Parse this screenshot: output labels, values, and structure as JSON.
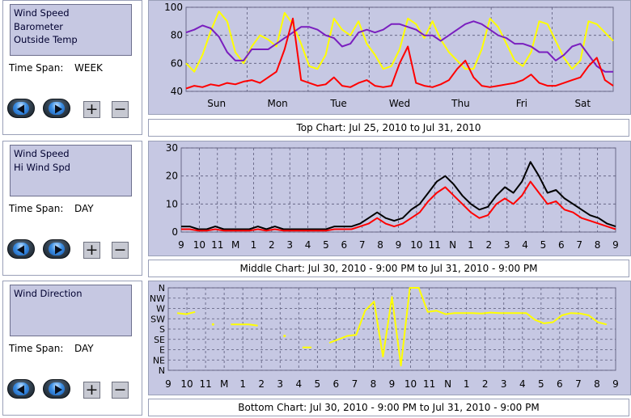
{
  "panels": [
    {
      "series": [
        "Wind Speed",
        "Barometer",
        "Outside Temp"
      ],
      "time_span_label": "Time Span:",
      "time_span_value": "WEEK",
      "buttons": {
        "prev": "previous",
        "next": "next",
        "plus": "+",
        "minus": "−"
      }
    },
    {
      "series": [
        "Wind Speed",
        "Hi Wind Spd"
      ],
      "time_span_label": "Time Span:",
      "time_span_value": "DAY",
      "buttons": {
        "prev": "previous",
        "next": "next",
        "plus": "+",
        "minus": "−"
      }
    },
    {
      "series": [
        "Wind Direction"
      ],
      "time_span_label": "Time Span:",
      "time_span_value": "DAY",
      "buttons": {
        "prev": "previous",
        "next": "next",
        "plus": "+",
        "minus": "−"
      }
    }
  ],
  "captions": {
    "top": "Top Chart:  Jul 25, 2010  to  Jul 31, 2010",
    "middle": "Middle Chart:  Jul 30, 2010 - 9:00 PM  to  Jul 31, 2010 - 9:00 PM",
    "bottom": "Bottom Chart:  Jul 30, 2010 - 9:00 PM  to  Jul 31, 2010 - 9:00 PM"
  },
  "colors": {
    "plot_bg": "#c6c8e3",
    "grid": "#5a5a7a",
    "wind_speed": "#ff0000",
    "barometer": "#7a1fbf",
    "outside_temp": "#ffff00",
    "hi_wind": "#000000",
    "wind_direction": "#ffff00"
  },
  "chart_data": [
    {
      "type": "line",
      "name": "top",
      "x_labels": [
        "Sun",
        "Mon",
        "Tue",
        "Wed",
        "Thu",
        "Fri",
        "Sat"
      ],
      "y_ticks": [
        "40",
        "60",
        "80",
        "100"
      ],
      "ylim": [
        40,
        100
      ],
      "grid": true,
      "series": [
        {
          "name": "Outside Temp",
          "color": "#ffff00",
          "values": [
            60,
            54,
            66,
            83,
            97,
            90,
            68,
            60,
            72,
            80,
            77,
            72,
            96,
            88,
            74,
            58,
            56,
            66,
            92,
            84,
            80,
            90,
            74,
            66,
            56,
            58,
            70,
            92,
            88,
            78,
            90,
            77,
            68,
            62,
            56,
            56,
            70,
            92,
            86,
            74,
            62,
            58,
            68,
            90,
            88,
            76,
            64,
            56,
            62,
            90,
            88,
            82,
            76
          ]
        },
        {
          "name": "Barometer",
          "color": "#7a1fbf",
          "values": [
            82,
            84,
            87,
            85,
            79,
            68,
            62,
            62,
            70,
            70,
            70,
            74,
            78,
            82,
            86,
            86,
            84,
            80,
            78,
            72,
            74,
            82,
            84,
            82,
            84,
            88,
            88,
            86,
            84,
            80,
            80,
            76,
            80,
            84,
            88,
            90,
            88,
            84,
            80,
            78,
            74,
            74,
            72,
            68,
            68,
            62,
            66,
            72,
            74,
            66,
            58,
            54,
            54
          ]
        },
        {
          "name": "Wind Speed",
          "color": "#ff0000",
          "values": [
            42,
            44,
            43,
            45,
            44,
            46,
            45,
            47,
            48,
            46,
            50,
            54,
            70,
            92,
            48,
            46,
            44,
            45,
            50,
            44,
            43,
            46,
            48,
            44,
            43,
            44,
            60,
            72,
            46,
            44,
            43,
            45,
            48,
            56,
            62,
            50,
            44,
            43,
            44,
            45,
            46,
            48,
            52,
            46,
            44,
            44,
            46,
            48,
            50,
            58,
            64,
            48,
            44
          ]
        }
      ]
    },
    {
      "type": "line",
      "name": "middle",
      "x_labels": [
        "9",
        "10",
        "11",
        "M",
        "1",
        "2",
        "3",
        "4",
        "5",
        "6",
        "7",
        "8",
        "9",
        "10",
        "11",
        "N",
        "1",
        "2",
        "3",
        "4",
        "5",
        "6",
        "7",
        "8",
        "9"
      ],
      "y_ticks": [
        "0",
        "10",
        "20",
        "30"
      ],
      "ylim": [
        0,
        30
      ],
      "grid": true,
      "series": [
        {
          "name": "Hi Wind Spd",
          "color": "#000000",
          "values": [
            2,
            2,
            1,
            1,
            2,
            1,
            1,
            1,
            1,
            2,
            1,
            2,
            1,
            1,
            1,
            1,
            1,
            1,
            2,
            2,
            2,
            3,
            5,
            7,
            5,
            4,
            5,
            8,
            10,
            14,
            18,
            20,
            17,
            13,
            10,
            8,
            9,
            13,
            16,
            14,
            18,
            25,
            20,
            14,
            15,
            12,
            10,
            8,
            6,
            5,
            3,
            2
          ]
        },
        {
          "name": "Wind Speed",
          "color": "#ff0000",
          "values": [
            1,
            1,
            0.5,
            0.5,
            1,
            0.5,
            0.5,
            0.5,
            0.5,
            1,
            0.5,
            1,
            0.5,
            0.5,
            0.5,
            0.5,
            0.5,
            0.5,
            1,
            1,
            1,
            2,
            3,
            5,
            3,
            2,
            3,
            5,
            7,
            11,
            14,
            16,
            13,
            10,
            7,
            5,
            6,
            10,
            12,
            10,
            13,
            18,
            14,
            10,
            11,
            8,
            7,
            5,
            4,
            3,
            2,
            1
          ]
        }
      ]
    },
    {
      "type": "line",
      "name": "bottom",
      "x_labels": [
        "9",
        "10",
        "11",
        "M",
        "1",
        "2",
        "3",
        "4",
        "5",
        "6",
        "7",
        "8",
        "9",
        "10",
        "11",
        "N",
        "1",
        "2",
        "3",
        "4",
        "5",
        "6",
        "7",
        "8",
        "9"
      ],
      "y_ticks": [
        "N",
        "NE",
        "E",
        "SE",
        "S",
        "SW",
        "W",
        "NW",
        "N"
      ],
      "ylim": [
        0,
        360
      ],
      "grid": true,
      "series": [
        {
          "name": "Wind Direction",
          "color": "#ffff00",
          "values": [
            null,
            250,
            245,
            255,
            null,
            200,
            null,
            200,
            200,
            200,
            195,
            null,
            null,
            150,
            null,
            100,
            100,
            null,
            120,
            135,
            150,
            155,
            260,
            300,
            60,
            320,
            20,
            360,
            360,
            255,
            260,
            245,
            250,
            250,
            250,
            248,
            252,
            250,
            250,
            250,
            250,
            220,
            205,
            210,
            240,
            250,
            248,
            240,
            210,
            200,
            null
          ]
        }
      ]
    }
  ]
}
